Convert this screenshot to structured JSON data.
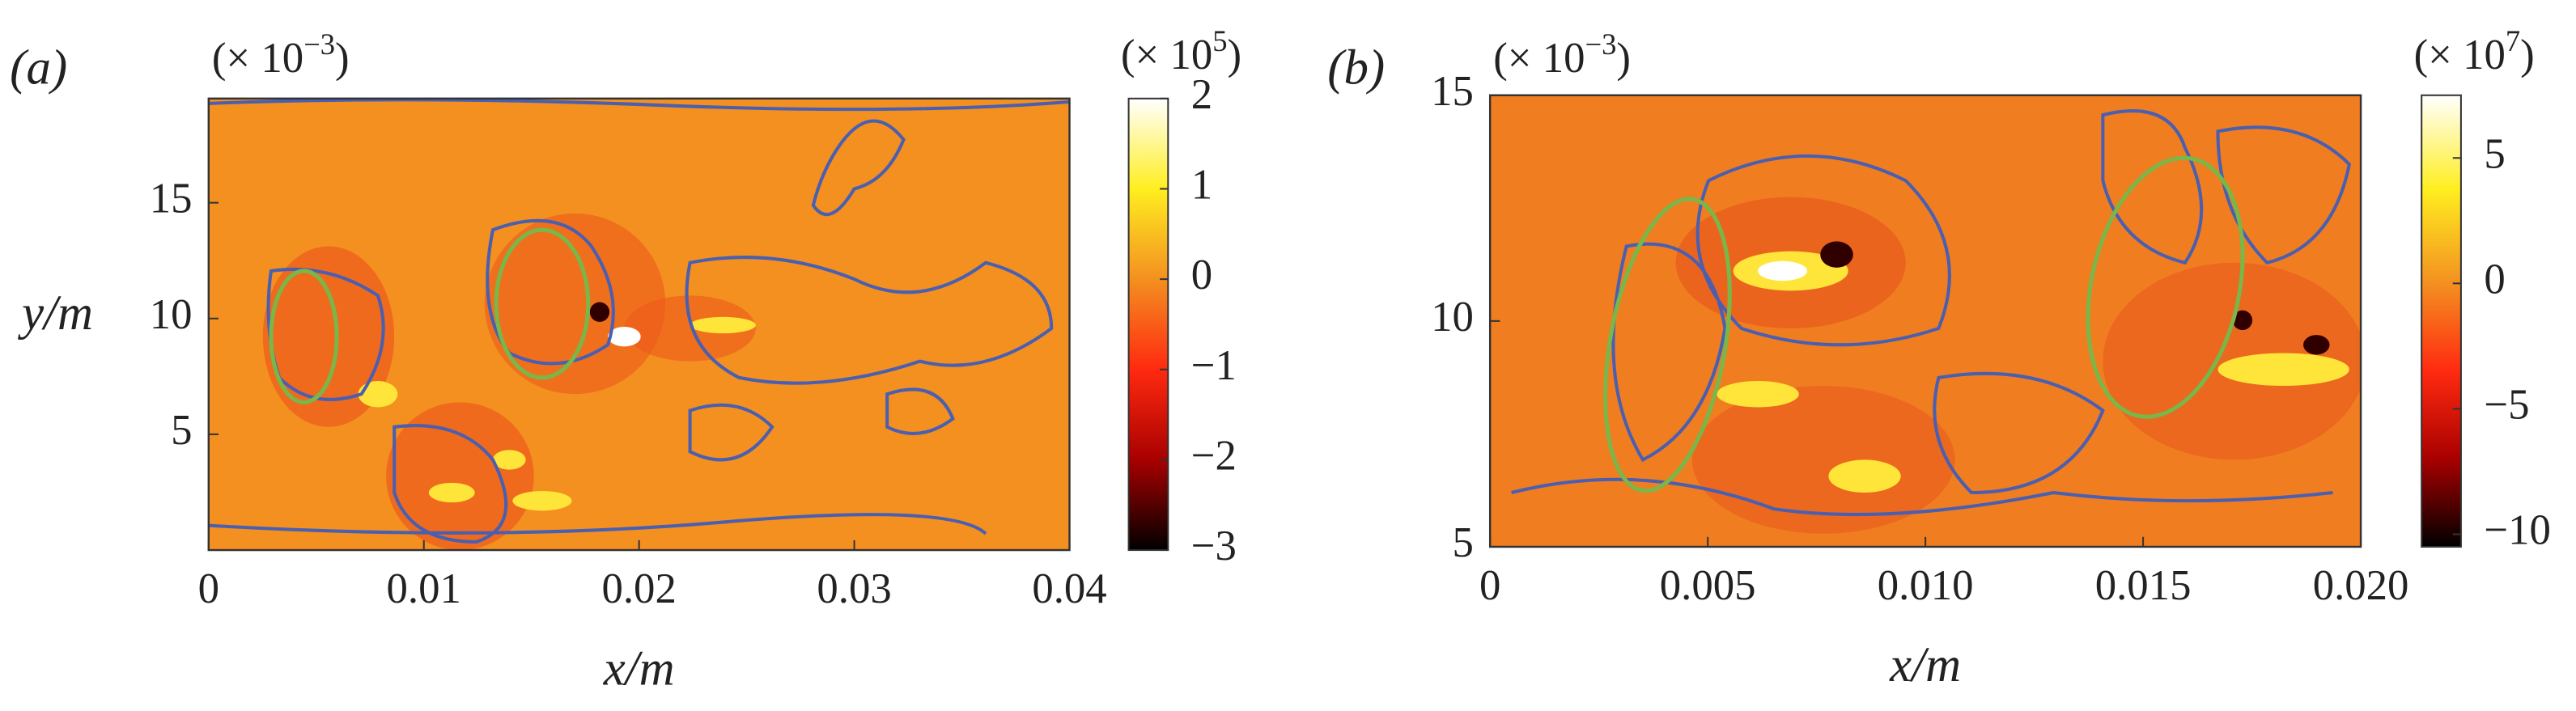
{
  "chart_data": [
    {
      "type": "contour",
      "panel_label": "(a)",
      "xlabel": "x/m",
      "ylabel": "y/m",
      "y_scale": {
        "base": "(× 10",
        "exponent": "−3",
        "close": ")"
      },
      "colorbar_scale": {
        "base": "(× 10",
        "exponent": "5",
        "close": ")"
      },
      "xlim": [
        0,
        0.04
      ],
      "xticks": [
        0,
        0.01,
        0.02,
        0.03,
        0.04
      ],
      "ylim": [
        0,
        19.5
      ],
      "yticks": [
        5,
        10,
        15
      ],
      "clim": [
        -3,
        2
      ],
      "cticks": [
        {
          "value": -3,
          "label": "−3"
        },
        {
          "value": -2,
          "label": "−2"
        },
        {
          "value": -1,
          "label": "−1"
        },
        0,
        1,
        2
      ],
      "colormap": [
        "#000000",
        "#a80000",
        "#ff2a10",
        "#f39020",
        "#ffee20",
        "#ffffff"
      ],
      "grid": false
    },
    {
      "type": "contour",
      "panel_label": "(b)",
      "xlabel": "x/m",
      "y_scale": {
        "base": "(× 10",
        "exponent": "−3",
        "close": ")"
      },
      "colorbar_scale": {
        "base": "(× 10",
        "exponent": "7",
        "close": ")"
      },
      "xlim": [
        0,
        0.02
      ],
      "xticks": [
        0,
        0.005,
        {
          "value": 0.01,
          "label": "0.010"
        },
        0.015,
        {
          "value": 0.02,
          "label": "0.020"
        }
      ],
      "ylim": [
        5,
        15
      ],
      "yticks": [
        5,
        10,
        15
      ],
      "clim": [
        -10.5,
        7.5
      ],
      "cticks": [
        {
          "value": -10,
          "label": "−10"
        },
        {
          "value": -5,
          "label": "−5"
        },
        0,
        5
      ],
      "colormap": [
        "#000000",
        "#a80000",
        "#ff2a10",
        "#f39020",
        "#ffee20",
        "#ffffff"
      ],
      "grid": false
    }
  ]
}
